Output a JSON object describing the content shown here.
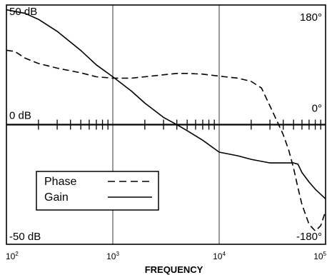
{
  "chart_data": {
    "type": "line",
    "x_scale": "log",
    "xlim": [
      100,
      100000
    ],
    "xlabel": "FREQUENCY",
    "x_ticks": [
      {
        "value": 100,
        "base": "10",
        "exp": "2"
      },
      {
        "value": 1000,
        "base": "10",
        "exp": "3"
      },
      {
        "value": 10000,
        "base": "10",
        "exp": "4"
      },
      {
        "value": 100000,
        "base": "10",
        "exp": "5"
      }
    ],
    "left_axis": {
      "ylim": [
        -50,
        50
      ],
      "labels": [
        {
          "value": 50,
          "text": "50 dB"
        },
        {
          "value": 0,
          "text": "0 dB"
        },
        {
          "value": -50,
          "text": "-50 dB"
        }
      ]
    },
    "right_axis": {
      "ylim": [
        -180,
        180
      ],
      "labels": [
        {
          "value": 180,
          "text": "180°"
        },
        {
          "value": 0,
          "text": "0°"
        },
        {
          "value": -180,
          "text": "-180°"
        }
      ]
    },
    "grid": {
      "x_major": true,
      "zero_line": true
    },
    "legend": {
      "position": "lower-left",
      "entries": [
        {
          "name": "Phase",
          "style": "dashed"
        },
        {
          "name": "Gain",
          "style": "solid"
        }
      ]
    },
    "series": [
      {
        "name": "Gain",
        "axis": "left",
        "style": "solid",
        "points": [
          [
            100,
            48
          ],
          [
            150,
            46.5
          ],
          [
            200,
            44
          ],
          [
            300,
            39
          ],
          [
            500,
            31
          ],
          [
            700,
            25
          ],
          [
            1000,
            20
          ],
          [
            1500,
            14
          ],
          [
            2000,
            9
          ],
          [
            3000,
            3
          ],
          [
            4000,
            0
          ],
          [
            5000,
            -2.5
          ],
          [
            7000,
            -6.5
          ],
          [
            10000,
            -11.5
          ],
          [
            15000,
            -13
          ],
          [
            20000,
            -14.5
          ],
          [
            30000,
            -16
          ],
          [
            40000,
            -16
          ],
          [
            50000,
            -16
          ],
          [
            55000,
            -16.5
          ],
          [
            60000,
            -20
          ],
          [
            70000,
            -24
          ],
          [
            80000,
            -27
          ],
          [
            100000,
            -31
          ]
        ]
      },
      {
        "name": "Phase",
        "axis": "right",
        "style": "dashed",
        "points": [
          [
            100,
            112
          ],
          [
            120,
            110
          ],
          [
            150,
            100
          ],
          [
            200,
            92
          ],
          [
            300,
            85
          ],
          [
            500,
            78
          ],
          [
            700,
            72
          ],
          [
            1000,
            70
          ],
          [
            1500,
            70
          ],
          [
            2000,
            72
          ],
          [
            3000,
            75
          ],
          [
            4000,
            77
          ],
          [
            5000,
            77
          ],
          [
            7000,
            76
          ],
          [
            10000,
            73
          ],
          [
            15000,
            70
          ],
          [
            20000,
            65
          ],
          [
            25000,
            55
          ],
          [
            30000,
            28
          ],
          [
            35000,
            5
          ],
          [
            40000,
            -15
          ],
          [
            45000,
            -38
          ],
          [
            50000,
            -65
          ],
          [
            55000,
            -95
          ],
          [
            60000,
            -120
          ],
          [
            70000,
            -150
          ],
          [
            80000,
            -160
          ],
          [
            90000,
            -152
          ],
          [
            100000,
            -130
          ]
        ]
      }
    ]
  }
}
